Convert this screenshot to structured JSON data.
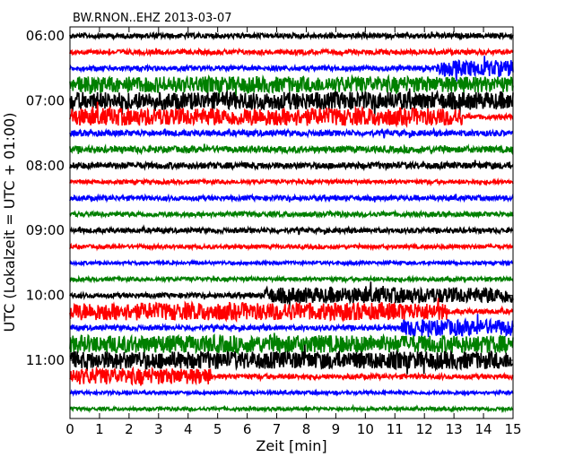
{
  "chart_data": {
    "type": "line",
    "title": "BW.RNON..EHZ 2013-03-07",
    "xlabel": "Zeit  [min]",
    "ylabel": "UTC (Lokalzeit = UTC + 01:00)",
    "xlim": [
      0,
      15
    ],
    "xticks": [
      "0",
      "1",
      "2",
      "3",
      "4",
      "5",
      "6",
      "7",
      "8",
      "9",
      "10",
      "11",
      "12",
      "13",
      "14",
      "15"
    ],
    "yticks": [
      "06:00",
      "07:00",
      "08:00",
      "09:00",
      "10:00",
      "11:00"
    ],
    "trace_colors": [
      "#000000",
      "#ff0000",
      "#0000ff",
      "#008000"
    ],
    "series": [
      {
        "time": "06:00",
        "color": "#000000",
        "amplitude": 0.15,
        "segments": []
      },
      {
        "time": "06:15",
        "color": "#ff0000",
        "amplitude": 0.15,
        "segments": []
      },
      {
        "time": "06:30",
        "color": "#0000ff",
        "amplitude": 0.15,
        "segments": [
          {
            "from": 12.4,
            "to": 15,
            "amplitude": 0.5
          }
        ]
      },
      {
        "time": "06:45",
        "color": "#008000",
        "amplitude": 0.5,
        "segments": []
      },
      {
        "time": "07:00",
        "color": "#000000",
        "amplitude": 0.55,
        "segments": []
      },
      {
        "time": "07:15",
        "color": "#ff0000",
        "amplitude": 0.55,
        "segments": [
          {
            "from": 13.3,
            "to": 15,
            "amplitude": 0.15
          }
        ]
      },
      {
        "time": "07:30",
        "color": "#0000ff",
        "amplitude": 0.18,
        "segments": []
      },
      {
        "time": "07:45",
        "color": "#008000",
        "amplitude": 0.2,
        "segments": []
      },
      {
        "time": "08:00",
        "color": "#000000",
        "amplitude": 0.2,
        "segments": []
      },
      {
        "time": "08:15",
        "color": "#ff0000",
        "amplitude": 0.12,
        "segments": []
      },
      {
        "time": "08:30",
        "color": "#0000ff",
        "amplitude": 0.15,
        "segments": []
      },
      {
        "time": "08:45",
        "color": "#008000",
        "amplitude": 0.15,
        "segments": []
      },
      {
        "time": "09:00",
        "color": "#000000",
        "amplitude": 0.15,
        "segments": []
      },
      {
        "time": "09:15",
        "color": "#ff0000",
        "amplitude": 0.12,
        "segments": []
      },
      {
        "time": "09:30",
        "color": "#0000ff",
        "amplitude": 0.1,
        "segments": []
      },
      {
        "time": "09:45",
        "color": "#008000",
        "amplitude": 0.12,
        "segments": []
      },
      {
        "time": "10:00",
        "color": "#000000",
        "amplitude": 0.15,
        "segments": [
          {
            "from": 6.6,
            "to": 15,
            "amplitude": 0.5
          }
        ]
      },
      {
        "time": "10:15",
        "color": "#ff0000",
        "amplitude": 0.55,
        "segments": [
          {
            "from": 12.8,
            "to": 15,
            "amplitude": 0.15
          }
        ]
      },
      {
        "time": "10:30",
        "color": "#0000ff",
        "amplitude": 0.15,
        "segments": [
          {
            "from": 11.2,
            "to": 15,
            "amplitude": 0.5
          }
        ]
      },
      {
        "time": "10:45",
        "color": "#008000",
        "amplitude": 0.55,
        "segments": []
      },
      {
        "time": "11:00",
        "color": "#000000",
        "amplitude": 0.55,
        "segments": []
      },
      {
        "time": "11:15",
        "color": "#ff0000",
        "amplitude": 0.5,
        "segments": [
          {
            "from": 4.8,
            "to": 15,
            "amplitude": 0.15
          }
        ]
      },
      {
        "time": "11:30",
        "color": "#0000ff",
        "amplitude": 0.1,
        "segments": []
      },
      {
        "time": "11:45",
        "color": "#008000",
        "amplitude": 0.1,
        "segments": []
      }
    ]
  }
}
